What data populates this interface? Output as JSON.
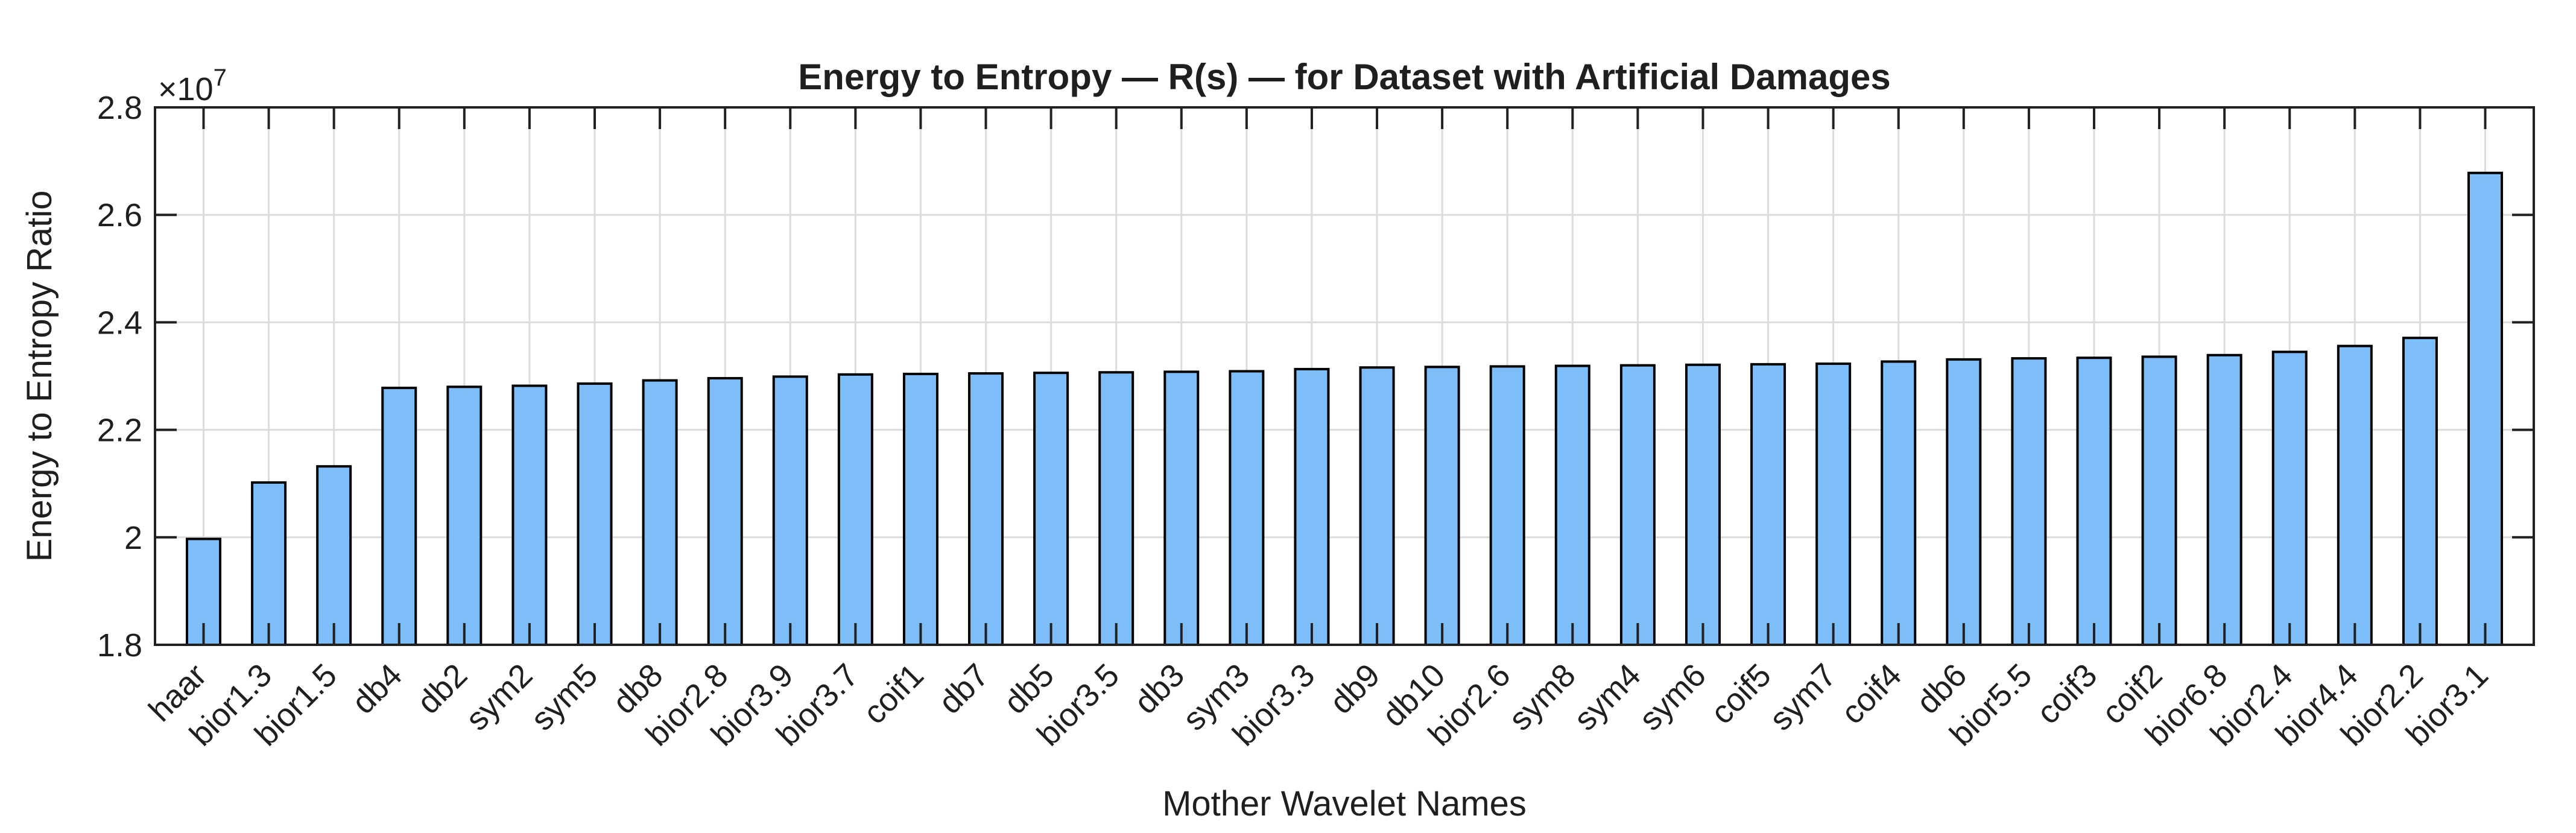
{
  "figure": {
    "background": "#ffffff"
  },
  "chart_data": {
    "type": "bar",
    "title": "Energy to Entropy — R(s) — for Dataset with Artificial Damages",
    "xlabel": "Mother Wavelet Names",
    "ylabel": "Energy to Entropy Ratio",
    "y_exponent_prefix": "×10",
    "y_exponent": "7",
    "unit_multiplier": 10000000,
    "ylim": [
      1.8,
      2.8
    ],
    "ytick_labels": [
      "1.8",
      "2",
      "2.2",
      "2.4",
      "2.6",
      "2.8"
    ],
    "ytick_values": [
      1.8,
      2.0,
      2.2,
      2.4,
      2.6,
      2.8
    ],
    "grid": true,
    "legend": "none",
    "bar_color": "#7DBEFA",
    "bar_edge_color": "#000000",
    "grid_color": "#DCDCDC",
    "axis_color": "#212121",
    "categories": [
      "haar",
      "bior1.3",
      "bior1.5",
      "db4",
      "db2",
      "sym2",
      "sym5",
      "db8",
      "bior2.8",
      "bior3.9",
      "bior3.7",
      "coif1",
      "db7",
      "db5",
      "bior3.5",
      "db3",
      "sym3",
      "bior3.3",
      "db9",
      "db10",
      "bior2.6",
      "sym8",
      "sym4",
      "sym6",
      "coif5",
      "sym7",
      "coif4",
      "db6",
      "bior5.5",
      "coif3",
      "coif2",
      "bior6.8",
      "bior2.4",
      "bior4.4",
      "bior2.2",
      "bior3.1"
    ],
    "values": [
      1.997,
      2.102,
      2.132,
      2.278,
      2.28,
      2.282,
      2.286,
      2.292,
      2.296,
      2.299,
      2.303,
      2.304,
      2.305,
      2.306,
      2.307,
      2.308,
      2.309,
      2.313,
      2.316,
      2.317,
      2.318,
      2.319,
      2.32,
      2.321,
      2.322,
      2.323,
      2.327,
      2.331,
      2.333,
      2.334,
      2.336,
      2.339,
      2.345,
      2.356,
      2.371,
      2.678
    ]
  }
}
